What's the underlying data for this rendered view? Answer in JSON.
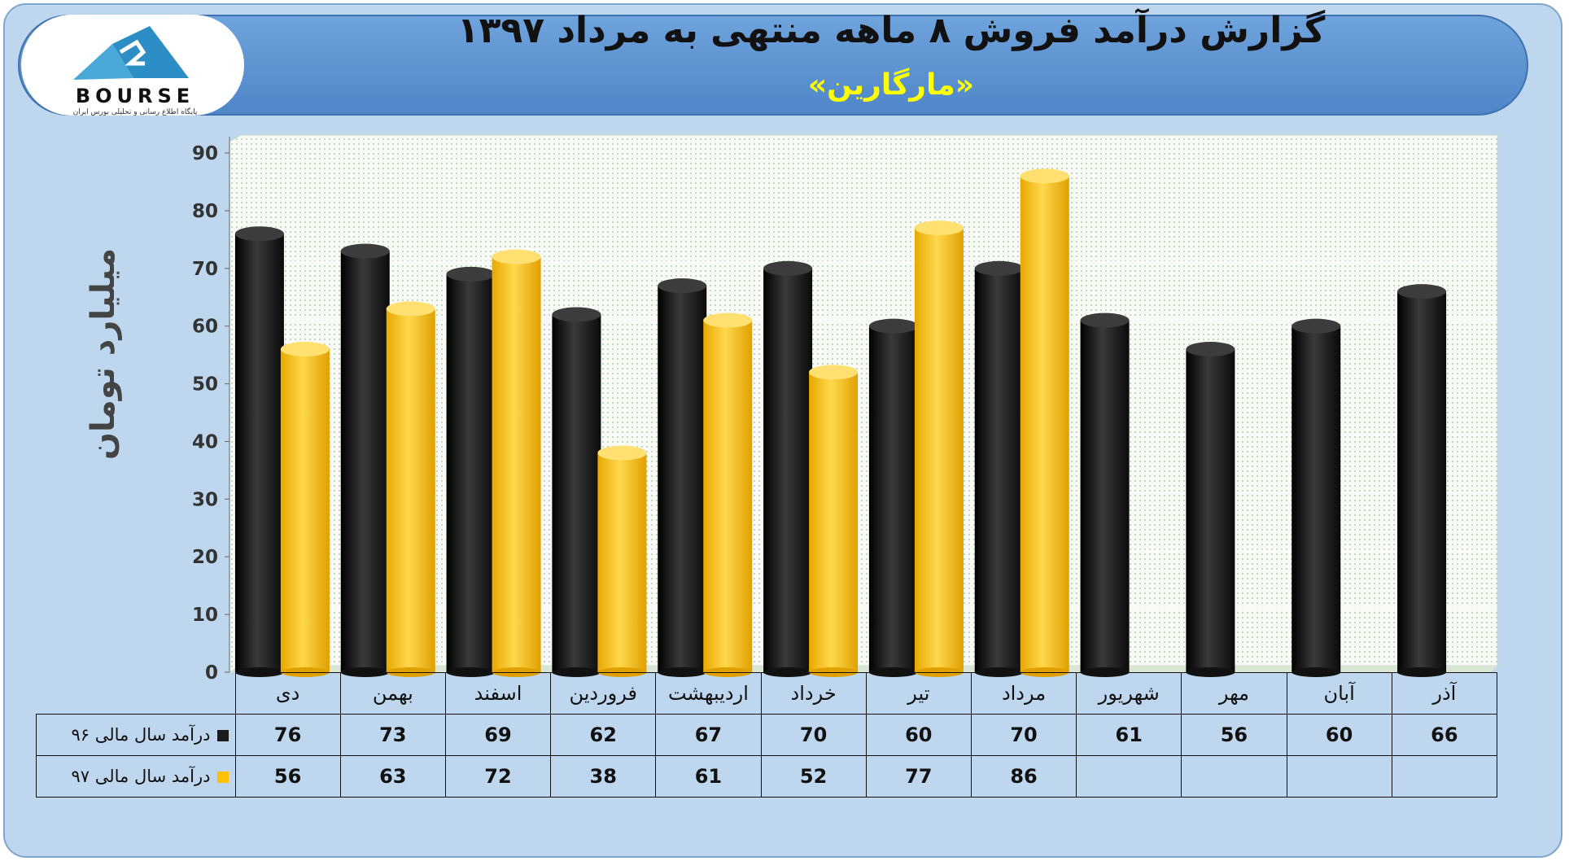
{
  "header": {
    "title": "گزارش درآمد فروش ۸ ماهه منتهی به مرداد ۱۳۹۷",
    "subtitle": "«مارگارین»"
  },
  "logo": {
    "wordmark": "BOURSE",
    "tagline": "پایگاه اطلاع رسانی و تحلیلی بورس ایران"
  },
  "colors": {
    "series_96": "#1a1a1a",
    "series_97": "#ffc000",
    "panel": "#bed7ef",
    "banner": "#5b93d3"
  },
  "chart_data": {
    "type": "bar",
    "categories": [
      "دی",
      "بهمن",
      "اسفند",
      "فروردین",
      "اردیبهشت",
      "خرداد",
      "تیر",
      "مرداد",
      "شهریور",
      "مهر",
      "آبان",
      "آذر"
    ],
    "series": [
      {
        "name": "درآمد سال مالی ۹۶",
        "values": [
          76,
          73,
          69,
          62,
          67,
          70,
          60,
          70,
          61,
          56,
          60,
          66
        ]
      },
      {
        "name": "درآمد سال مالی ۹۷",
        "values": [
          56,
          63,
          72,
          38,
          61,
          52,
          77,
          86,
          null,
          null,
          null,
          null
        ]
      }
    ],
    "ylabel": "میلیارد تومان",
    "ylim": [
      0,
      90
    ],
    "yticks": [
      0,
      10,
      20,
      30,
      40,
      50,
      60,
      70,
      80,
      90
    ],
    "grid": true,
    "legend": "table"
  }
}
